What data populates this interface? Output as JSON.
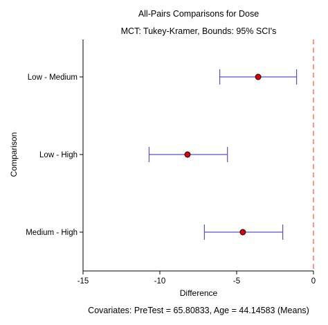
{
  "chart_data": {
    "type": "interval",
    "title": "All-Pairs Comparisons for Dose",
    "subtitle": "MCT: Tukey-Kramer, Bounds: 95% SCI's",
    "xlabel": "Difference",
    "ylabel": "Comparison",
    "footnote": "Covariates: PreTest = 65.80833, Age = 44.14583 (Means)",
    "xlim": [
      -15,
      0
    ],
    "xticks": [
      -15,
      -10,
      -5,
      0
    ],
    "reference_line": 0,
    "categories": [
      "Low - Medium",
      "Low - High",
      "Medium - High"
    ],
    "estimates": [
      -3.6,
      -8.2,
      -4.6
    ],
    "lower": [
      -6.1,
      -10.7,
      -7.1
    ],
    "upper": [
      -1.1,
      -5.6,
      -2.0
    ],
    "colors": {
      "interval": "#5050dc",
      "point": "#e00000",
      "reference": "#ff6040",
      "axis": "#000000"
    }
  }
}
